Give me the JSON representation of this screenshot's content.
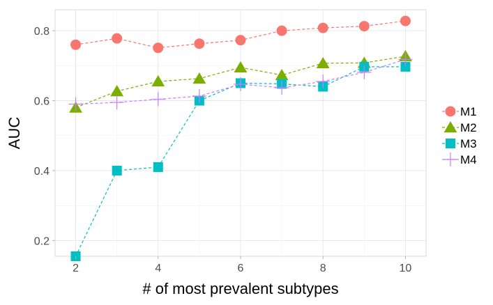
{
  "chart_data": {
    "type": "line",
    "xlabel": "# of most prevalent subtypes",
    "ylabel": "AUC",
    "x": [
      2,
      3,
      4,
      5,
      6,
      7,
      8,
      9,
      10
    ],
    "xlim": [
      1.5,
      10.5
    ],
    "ylim": [
      0.155,
      0.86
    ],
    "xticks": [
      2,
      4,
      6,
      8,
      10
    ],
    "yticks": [
      0.2,
      0.4,
      0.6,
      0.8
    ],
    "ytick_labels": [
      "0.2",
      "0.4",
      "0.6",
      "0.8"
    ],
    "grid": true,
    "legend_position": "right",
    "series": [
      {
        "name": "M1",
        "marker": "circle",
        "color": "#F8766D",
        "values": [
          0.76,
          0.778,
          0.751,
          0.763,
          0.773,
          0.8,
          0.808,
          0.813,
          0.828
        ]
      },
      {
        "name": "M2",
        "marker": "triangle",
        "color": "#7CAE00",
        "values": [
          0.58,
          0.627,
          0.655,
          0.663,
          0.695,
          0.673,
          0.707,
          0.708,
          0.727
        ]
      },
      {
        "name": "M3",
        "marker": "square",
        "color": "#00BFC4",
        "values": [
          0.155,
          0.4,
          0.41,
          0.6,
          0.65,
          0.648,
          0.64,
          0.697,
          0.697
        ]
      },
      {
        "name": "M4",
        "marker": "plus",
        "color": "#C77CFF",
        "values": [
          0.59,
          0.595,
          0.604,
          0.613,
          0.647,
          0.637,
          0.655,
          0.681,
          0.718
        ]
      }
    ]
  }
}
